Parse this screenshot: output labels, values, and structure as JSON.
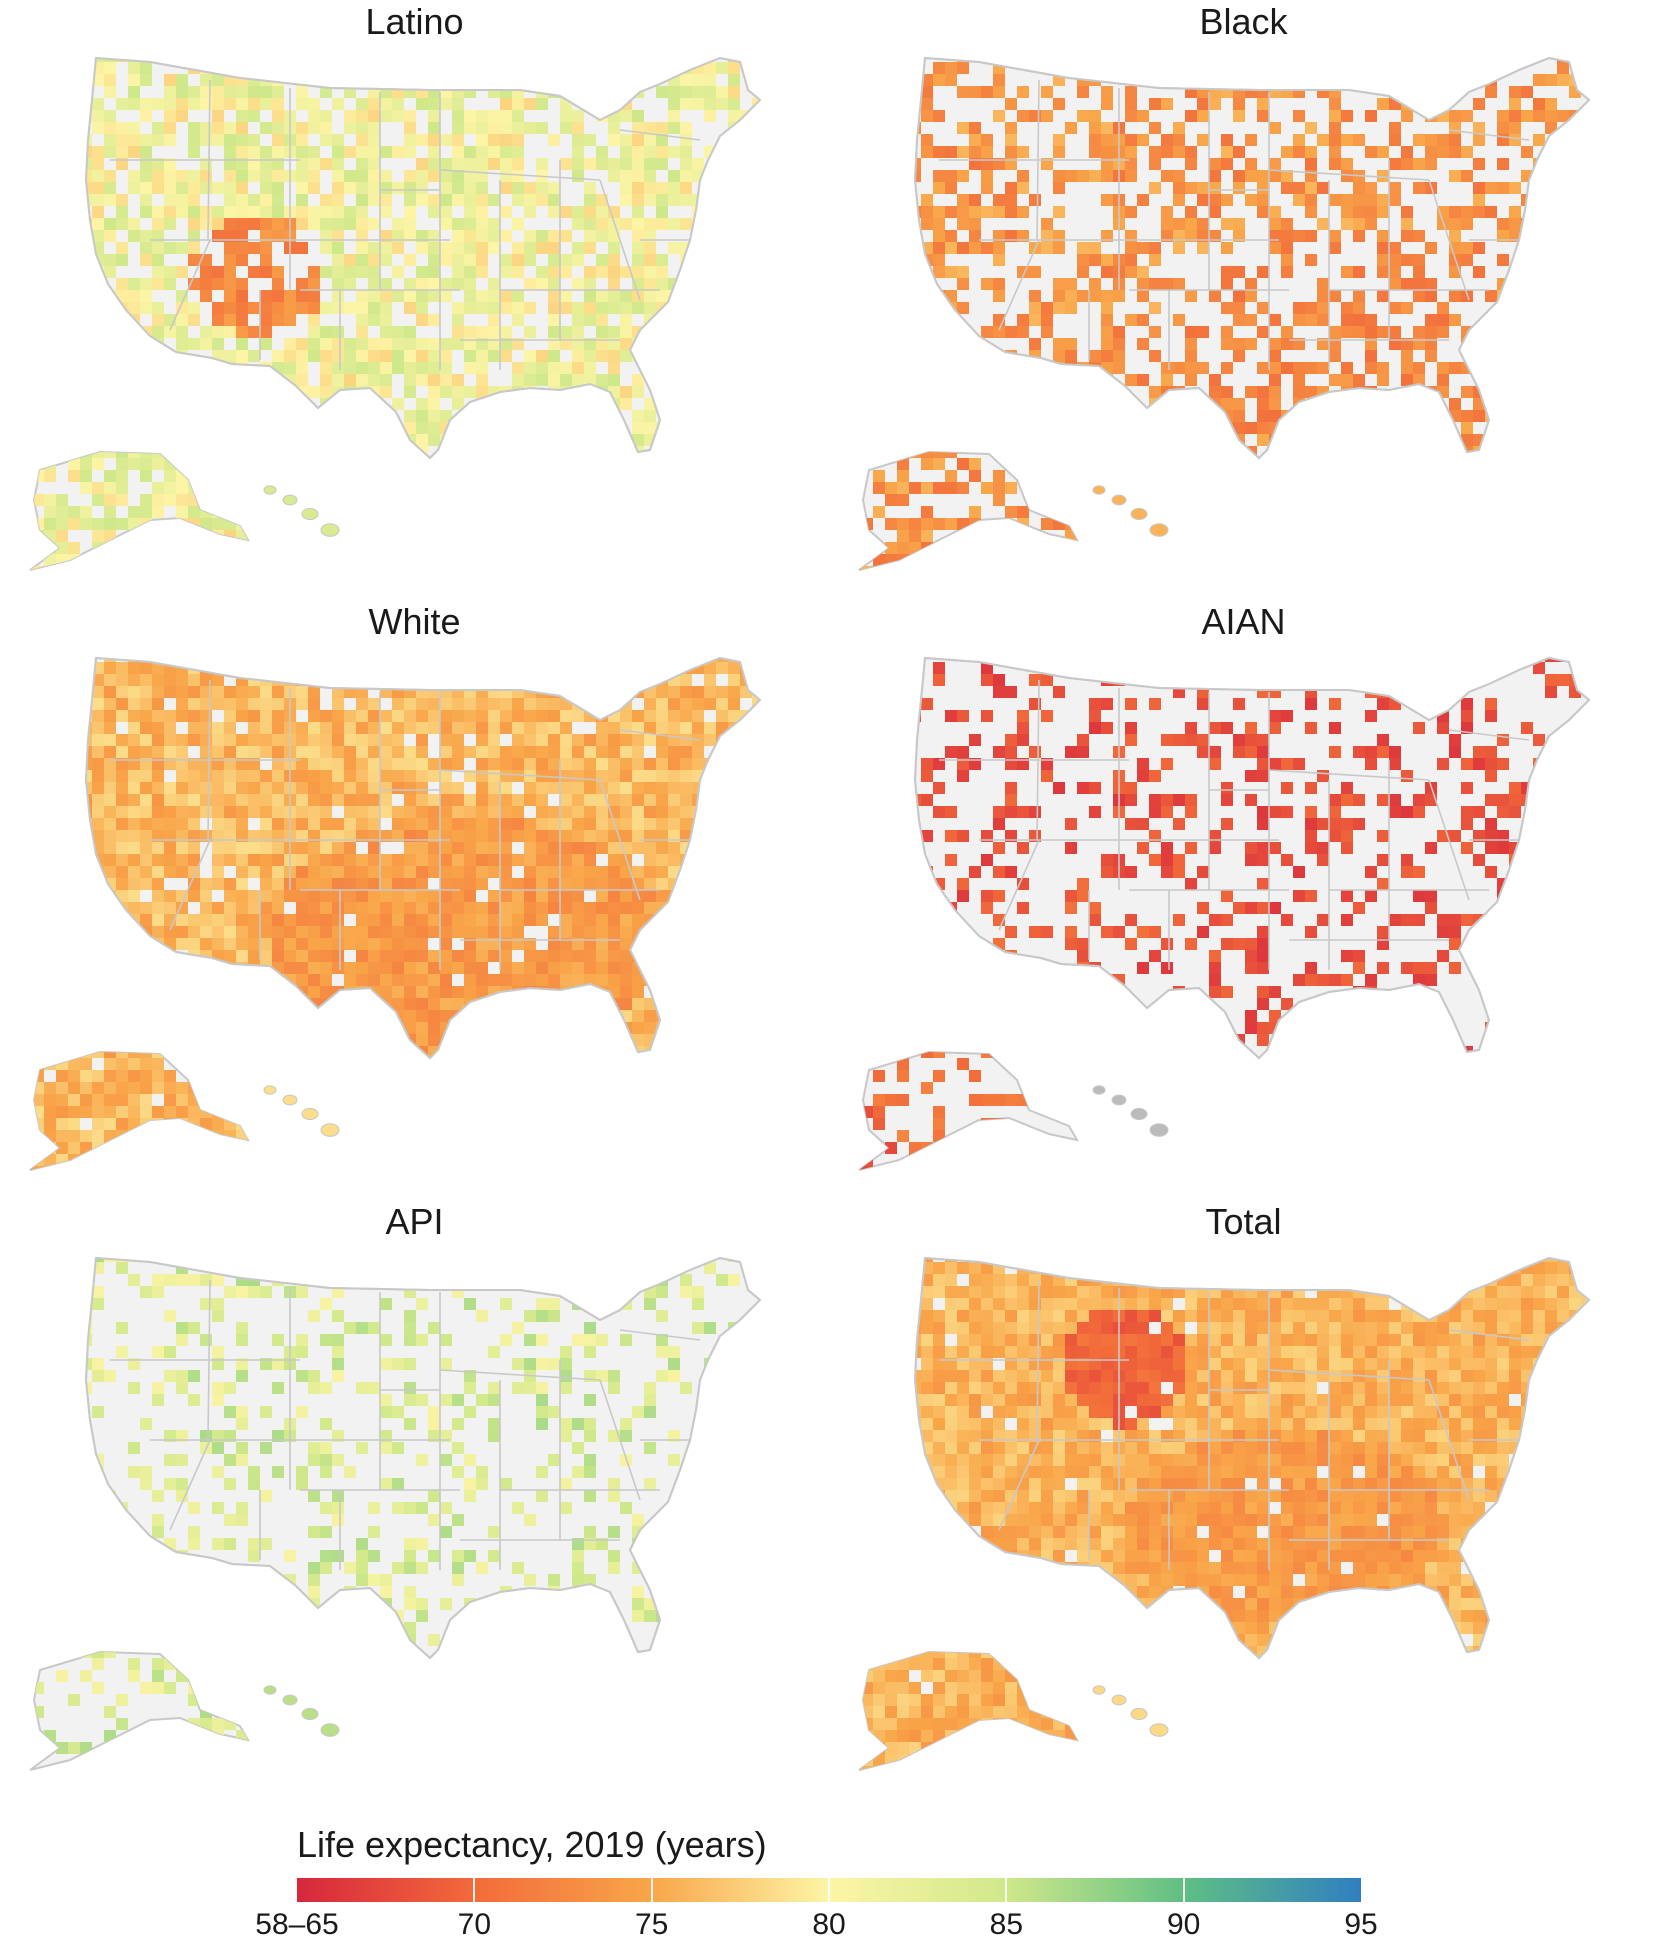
{
  "panels": [
    {
      "title": "Latino",
      "fill_scheme": "latino"
    },
    {
      "title": "Black",
      "fill_scheme": "black"
    },
    {
      "title": "White",
      "fill_scheme": "white"
    },
    {
      "title": "AIAN",
      "fill_scheme": "aian"
    },
    {
      "title": "API",
      "fill_scheme": "api"
    },
    {
      "title": "Total",
      "fill_scheme": "total"
    }
  ],
  "legend": {
    "title": "Life expectancy, 2019 (years)",
    "ticks": [
      "58–65",
      "70",
      "75",
      "80",
      "85",
      "90",
      "95"
    ],
    "tick_values": [
      65,
      70,
      75,
      80,
      85,
      90,
      95
    ],
    "range": [
      65,
      95
    ],
    "colors": [
      "#d7263d",
      "#f26b3a",
      "#f9a64a",
      "#fdf5a6",
      "#cfe88a",
      "#5fbf84",
      "#2f7fc1"
    ]
  },
  "map_colors": {
    "no_data": "#f2f2f2",
    "state_border": "#c8c8c8"
  }
}
